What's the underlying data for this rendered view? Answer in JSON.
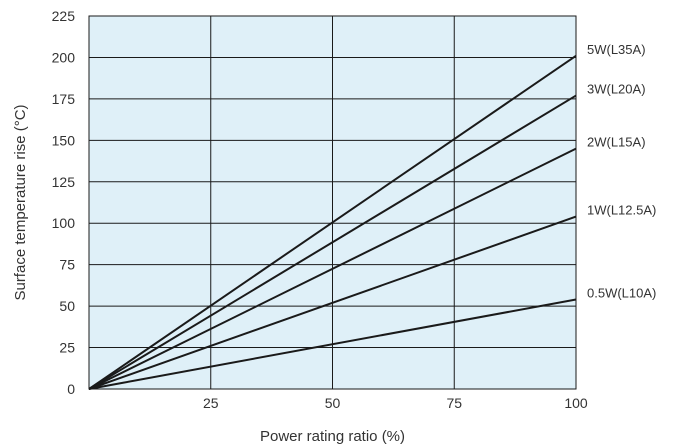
{
  "chart_data": {
    "type": "line",
    "xlabel": "Power rating ratio (%)",
    "ylabel": "Surface temperature rise (°C)",
    "xlim": [
      0,
      100
    ],
    "ylim": [
      0,
      225
    ],
    "x_ticks": [
      25,
      50,
      75,
      100
    ],
    "y_ticks": [
      0,
      25,
      50,
      75,
      100,
      125,
      150,
      175,
      200,
      225
    ],
    "grid": true,
    "legend": "right-end labels",
    "colors": {
      "background": "#dff0f8",
      "grid": "#1a1a1a",
      "line": "#1a1a1a"
    },
    "series": [
      {
        "name": "5W(L35A)",
        "x": [
          0,
          100
        ],
        "y": [
          0,
          201
        ]
      },
      {
        "name": "3W(L20A)",
        "x": [
          0,
          100
        ],
        "y": [
          0,
          177
        ]
      },
      {
        "name": "2W(L15A)",
        "x": [
          0,
          100
        ],
        "y": [
          0,
          145
        ]
      },
      {
        "name": "1W(L12.5A)",
        "x": [
          0,
          100
        ],
        "y": [
          0,
          104
        ]
      },
      {
        "name": "0.5W(L10A)",
        "x": [
          0,
          100
        ],
        "y": [
          0,
          54
        ]
      }
    ]
  }
}
